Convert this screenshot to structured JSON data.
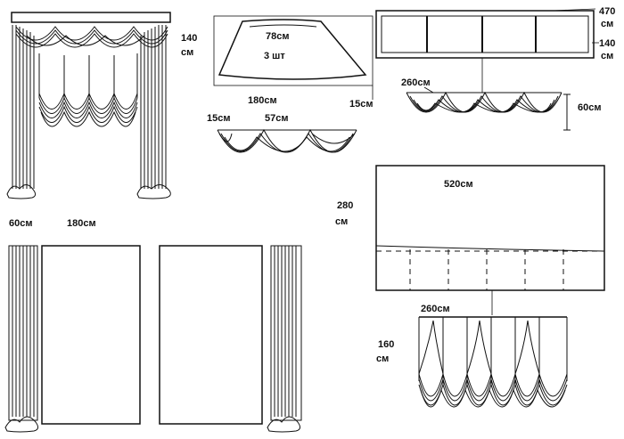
{
  "labels": {
    "curtain_height_1": "140",
    "curtain_height_unit": "см",
    "top_valance_radius": "78см",
    "top_valance_qty": "3 шт",
    "top_valance_width": "180см",
    "top_valance_drop": "15см",
    "swag_left": "15см",
    "swag_mid": "57см",
    "frame_470": "470",
    "frame_470_unit": "см",
    "frame_140": "140",
    "frame_140_unit": "см",
    "swag_row_width": "260см",
    "swag_row_height": "60см",
    "panel_width_label": "60см",
    "panel_length_label": "180см",
    "big_panel_width": "520см",
    "big_panel_height": "280",
    "big_panel_height_unit": "см",
    "austrian_width": "260см",
    "austrian_height": "160",
    "austrian_height_unit": "см"
  }
}
